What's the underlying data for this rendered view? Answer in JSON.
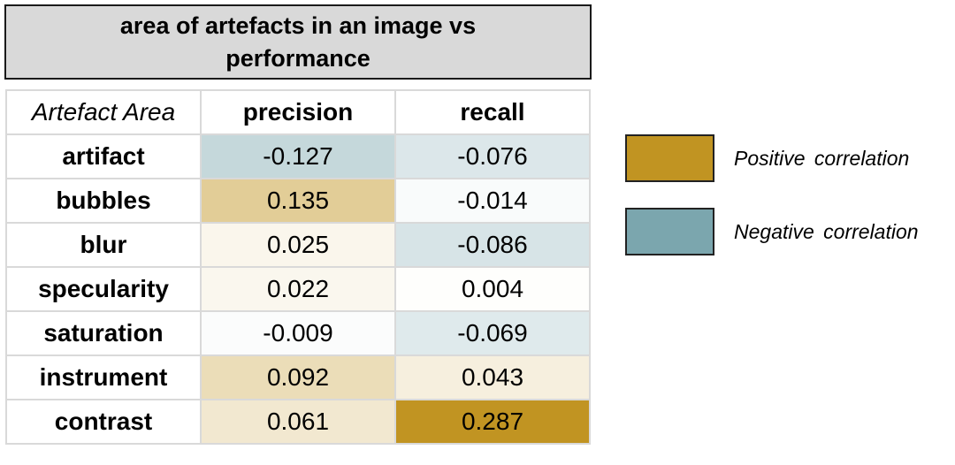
{
  "chart_data": {
    "type": "table",
    "title": "area of artefacts in an image vs performance",
    "corner_label": "Artefact Area",
    "columns": [
      "precision",
      "recall"
    ],
    "rows": [
      {
        "label": "artifact",
        "values": [
          "-0.127",
          "-0.076"
        ]
      },
      {
        "label": "bubbles",
        "values": [
          "0.135",
          "-0.014"
        ]
      },
      {
        "label": "blur",
        "values": [
          "0.025",
          "-0.086"
        ]
      },
      {
        "label": "specularity",
        "values": [
          "0.022",
          "0.004"
        ]
      },
      {
        "label": "saturation",
        "values": [
          "-0.009",
          "-0.069"
        ]
      },
      {
        "label": "instrument",
        "values": [
          "0.092",
          "0.043"
        ]
      },
      {
        "label": "contrast",
        "values": [
          "0.061",
          "0.287"
        ]
      }
    ],
    "color_scale": {
      "positive": "#c19422",
      "negative": "#7ba6ae",
      "neutral": "#ffffff",
      "max_abs": 0.287
    },
    "legend": [
      {
        "label": "Positive  correlation",
        "color": "#c19422"
      },
      {
        "label": "Negative  correlation",
        "color": "#7ba6ae"
      }
    ],
    "legend_placement": "right"
  }
}
